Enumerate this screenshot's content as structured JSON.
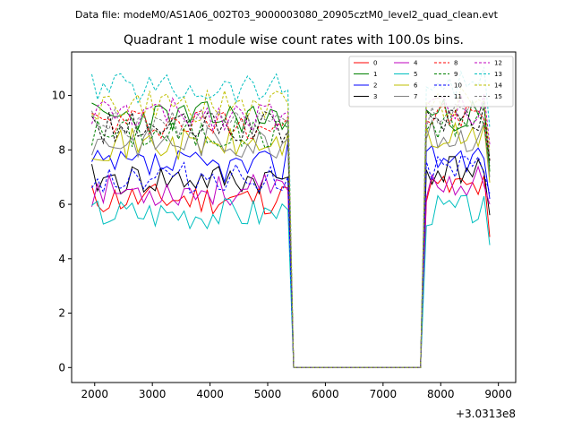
{
  "header": {
    "data_file": "Data file: modeM0/AS1A06_002T03_9000003080_20905cztM0_level2_quad_clean.evt"
  },
  "chart_data": {
    "type": "line",
    "title": "Quadrant 1 module wise count rates with 100.0s bins.",
    "xlabel": "",
    "ylabel": "",
    "x_offset_label": "+3.0313e8",
    "xlim": [
      1600,
      9300
    ],
    "ylim": [
      -0.55,
      11.6
    ],
    "xticks": [
      2000,
      3000,
      4000,
      5000,
      6000,
      7000,
      8000,
      9000
    ],
    "yticks": [
      0,
      2,
      4,
      6,
      8,
      10
    ],
    "xtick_labels": [
      "2000",
      "3000",
      "4000",
      "5000",
      "6000",
      "7000",
      "8000",
      "9000"
    ],
    "ytick_labels": [
      "0",
      "2",
      "4",
      "6",
      "8",
      "10"
    ],
    "legend_position": "top-right",
    "segments": [
      {
        "x_start": 1950,
        "x_step": 100,
        "count": 36
      },
      {
        "x_start": 7650,
        "x_step": 100,
        "count": 13
      }
    ],
    "gap": {
      "x_start": 5750,
      "x_end": 7550,
      "value": 0
    },
    "series": [
      {
        "name": "0",
        "color": "#ff0000",
        "dash": "solid",
        "pre_mean": 6.2,
        "pre_end": 6.6,
        "post_mean": 6.6,
        "post_end": 4.8,
        "seed": 11
      },
      {
        "name": "1",
        "color": "#008000",
        "dash": "solid",
        "pre_mean": 9.2,
        "pre_end": 9.1,
        "post_mean": 9.3,
        "post_end": 7.2,
        "seed": 23
      },
      {
        "name": "2",
        "color": "#0000ff",
        "dash": "solid",
        "pre_mean": 7.4,
        "pre_end": 8.3,
        "post_mean": 7.8,
        "post_end": 6.2,
        "seed": 37
      },
      {
        "name": "3",
        "color": "#000000",
        "dash": "solid",
        "pre_mean": 6.9,
        "pre_end": 7.0,
        "post_mean": 7.3,
        "post_end": 5.6,
        "seed": 41
      },
      {
        "name": "4",
        "color": "#bf00bf",
        "dash": "solid",
        "pre_mean": 6.5,
        "pre_end": 6.5,
        "post_mean": 6.8,
        "post_end": 6.0,
        "seed": 53
      },
      {
        "name": "5",
        "color": "#00bfbf",
        "dash": "solid",
        "pre_mean": 5.7,
        "pre_end": 5.8,
        "post_mean": 5.8,
        "post_end": 4.5,
        "seed": 67
      },
      {
        "name": "6",
        "color": "#bfbf00",
        "dash": "solid",
        "pre_mean": 8.2,
        "pre_end": 8.6,
        "post_mean": 8.4,
        "post_end": 6.8,
        "seed": 71
      },
      {
        "name": "7",
        "color": "#808080",
        "dash": "solid",
        "pre_mean": 8.3,
        "pre_end": 8.4,
        "post_mean": 8.5,
        "post_end": 7.0,
        "seed": 83
      },
      {
        "name": "8",
        "color": "#ff0000",
        "dash": "dashed",
        "pre_mean": 9.0,
        "pre_end": 9.2,
        "post_mean": 9.2,
        "post_end": 7.6,
        "seed": 97
      },
      {
        "name": "9",
        "color": "#008000",
        "dash": "dashed",
        "pre_mean": 8.6,
        "pre_end": 8.8,
        "post_mean": 9.0,
        "post_end": 7.4,
        "seed": 101
      },
      {
        "name": "10",
        "color": "#0000ff",
        "dash": "dashed",
        "pre_mean": 7.0,
        "pre_end": 7.0,
        "post_mean": 7.2,
        "post_end": 6.4,
        "seed": 113
      },
      {
        "name": "11",
        "color": "#000000",
        "dash": "dashed",
        "pre_mean": 8.8,
        "pre_end": 8.7,
        "post_mean": 9.1,
        "post_end": 7.6,
        "seed": 127
      },
      {
        "name": "12",
        "color": "#bf00bf",
        "dash": "dashed",
        "pre_mean": 9.3,
        "pre_end": 9.4,
        "post_mean": 9.5,
        "post_end": 8.2,
        "seed": 131
      },
      {
        "name": "13",
        "color": "#00bfbf",
        "dash": "dashed",
        "pre_mean": 10.3,
        "pre_end": 10.2,
        "post_mean": 10.5,
        "post_end": 8.8,
        "seed": 139
      },
      {
        "name": "14",
        "color": "#bfbf00",
        "dash": "dashed",
        "pre_mean": 9.6,
        "pre_end": 9.7,
        "post_mean": 9.8,
        "post_end": 8.0,
        "seed": 149
      },
      {
        "name": "15",
        "color": "#808080",
        "dash": "dashed",
        "pre_mean": 8.9,
        "pre_end": 9.0,
        "post_mean": 9.2,
        "post_end": 7.8,
        "seed": 157
      }
    ]
  }
}
